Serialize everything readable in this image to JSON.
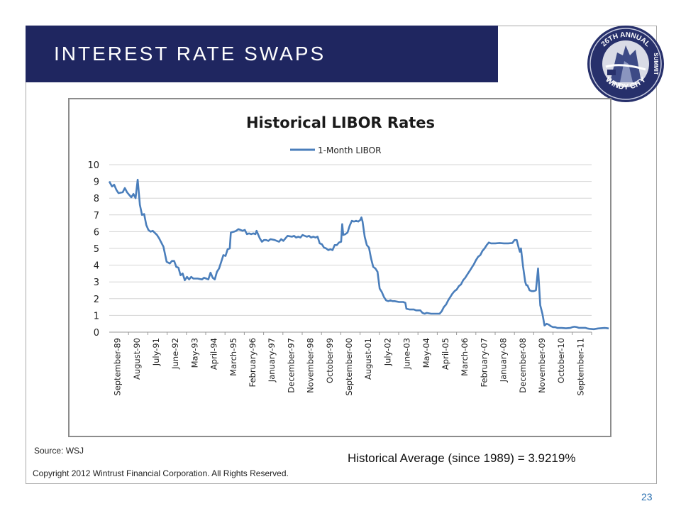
{
  "slide": {
    "title": "INTEREST RATE SWAPS",
    "source": "Source:  WSJ",
    "average": "Historical Average (since 1989) = 3.9219%",
    "copyright": "Copyright 2012 Wintrust Financial Corporation. All Rights Reserved.",
    "page_number": "23",
    "title_bar_color": "#1f2660"
  },
  "logo": {
    "top_text": "26TH ANNUAL",
    "side_text": "SUMMIT",
    "bottom_text": "WINDY CITY",
    "icon": "windy-city-summit-seal"
  },
  "chart_data": {
    "type": "line",
    "title": "Historical LIBOR Rates",
    "legend_position": "top-center",
    "grid": "horizontal",
    "ylim": [
      0,
      10
    ],
    "yticks": [
      0,
      1,
      2,
      3,
      4,
      5,
      6,
      7,
      8,
      9,
      10
    ],
    "xlim": [
      1989.67,
      2012.2
    ],
    "xtick_labels": [
      "September-89",
      "August-90",
      "July-91",
      "June-92",
      "May-93",
      "April-94",
      "March-95",
      "February-96",
      "January-97",
      "December-97",
      "November-98",
      "October-99",
      "September-00",
      "August-01",
      "July-02",
      "June-03",
      "May-04",
      "April-05",
      "March-06",
      "February-07",
      "January-08",
      "December-08",
      "November-09",
      "October-10",
      "September-11"
    ],
    "series": [
      {
        "name": "1-Month LIBOR",
        "color": "#4a7ebb",
        "points": [
          [
            1989.67,
            9.0
          ],
          [
            1989.8,
            8.7
          ],
          [
            1989.9,
            8.8
          ],
          [
            1990.0,
            8.5
          ],
          [
            1990.1,
            8.3
          ],
          [
            1990.3,
            8.35
          ],
          [
            1990.4,
            8.6
          ],
          [
            1990.5,
            8.35
          ],
          [
            1990.6,
            8.2
          ],
          [
            1990.7,
            8.05
          ],
          [
            1990.8,
            8.25
          ],
          [
            1990.9,
            8.0
          ],
          [
            1991.0,
            9.1
          ],
          [
            1991.1,
            7.6
          ],
          [
            1991.2,
            7.0
          ],
          [
            1991.3,
            7.05
          ],
          [
            1991.4,
            6.4
          ],
          [
            1991.5,
            6.1
          ],
          [
            1991.6,
            6.0
          ],
          [
            1991.7,
            6.05
          ],
          [
            1991.9,
            5.8
          ],
          [
            1992.0,
            5.6
          ],
          [
            1992.2,
            5.1
          ],
          [
            1992.3,
            4.5
          ],
          [
            1992.35,
            4.2
          ],
          [
            1992.5,
            4.1
          ],
          [
            1992.6,
            4.25
          ],
          [
            1992.7,
            4.25
          ],
          [
            1992.8,
            3.9
          ],
          [
            1992.9,
            3.85
          ],
          [
            1993.0,
            3.4
          ],
          [
            1993.1,
            3.5
          ],
          [
            1993.2,
            3.1
          ],
          [
            1993.3,
            3.3
          ],
          [
            1993.4,
            3.15
          ],
          [
            1993.5,
            3.3
          ],
          [
            1993.6,
            3.2
          ],
          [
            1993.8,
            3.2
          ],
          [
            1994.0,
            3.15
          ],
          [
            1994.1,
            3.25
          ],
          [
            1994.2,
            3.2
          ],
          [
            1994.3,
            3.15
          ],
          [
            1994.4,
            3.55
          ],
          [
            1994.5,
            3.25
          ],
          [
            1994.6,
            3.15
          ],
          [
            1994.7,
            3.6
          ],
          [
            1994.8,
            3.8
          ],
          [
            1994.9,
            4.2
          ],
          [
            1995.0,
            4.6
          ],
          [
            1995.1,
            4.55
          ],
          [
            1995.2,
            4.95
          ],
          [
            1995.3,
            5.0
          ],
          [
            1995.35,
            5.95
          ],
          [
            1995.5,
            6.0
          ],
          [
            1995.6,
            6.05
          ],
          [
            1995.7,
            6.15
          ],
          [
            1995.8,
            6.1
          ],
          [
            1995.9,
            6.05
          ],
          [
            1996.0,
            6.1
          ],
          [
            1996.1,
            5.85
          ],
          [
            1996.2,
            5.9
          ],
          [
            1996.3,
            5.85
          ],
          [
            1996.4,
            5.9
          ],
          [
            1996.5,
            5.85
          ],
          [
            1996.55,
            6.05
          ],
          [
            1996.7,
            5.6
          ],
          [
            1996.8,
            5.4
          ],
          [
            1996.9,
            5.5
          ],
          [
            1997.0,
            5.5
          ],
          [
            1997.1,
            5.45
          ],
          [
            1997.2,
            5.55
          ],
          [
            1997.4,
            5.5
          ],
          [
            1997.5,
            5.45
          ],
          [
            1997.6,
            5.4
          ],
          [
            1997.7,
            5.55
          ],
          [
            1997.8,
            5.45
          ],
          [
            1997.9,
            5.6
          ],
          [
            1998.0,
            5.75
          ],
          [
            1998.2,
            5.7
          ],
          [
            1998.3,
            5.75
          ],
          [
            1998.4,
            5.65
          ],
          [
            1998.5,
            5.7
          ],
          [
            1998.6,
            5.65
          ],
          [
            1998.7,
            5.8
          ],
          [
            1998.8,
            5.75
          ],
          [
            1998.9,
            5.7
          ],
          [
            1999.0,
            5.75
          ],
          [
            1999.1,
            5.65
          ],
          [
            1999.2,
            5.7
          ],
          [
            1999.3,
            5.65
          ],
          [
            1999.4,
            5.7
          ],
          [
            1999.5,
            5.3
          ],
          [
            1999.6,
            5.25
          ],
          [
            1999.7,
            5.05
          ],
          [
            1999.8,
            5.0
          ],
          [
            1999.9,
            4.9
          ],
          [
            2000.0,
            4.95
          ],
          [
            2000.1,
            4.9
          ],
          [
            2000.2,
            5.2
          ],
          [
            2000.3,
            5.2
          ],
          [
            2000.4,
            5.35
          ],
          [
            2000.5,
            5.4
          ],
          [
            2000.55,
            6.45
          ],
          [
            2000.6,
            5.8
          ],
          [
            2000.7,
            5.85
          ],
          [
            2000.8,
            5.95
          ],
          [
            2000.9,
            6.35
          ],
          [
            2001.0,
            6.65
          ],
          [
            2001.1,
            6.6
          ],
          [
            2001.2,
            6.65
          ],
          [
            2001.3,
            6.6
          ],
          [
            2001.4,
            6.7
          ],
          [
            2001.45,
            6.85
          ],
          [
            2001.5,
            6.6
          ],
          [
            2001.6,
            5.7
          ],
          [
            2001.7,
            5.2
          ],
          [
            2001.8,
            5.05
          ],
          [
            2001.9,
            4.4
          ],
          [
            2002.0,
            3.9
          ],
          [
            2002.1,
            3.8
          ],
          [
            2002.2,
            3.6
          ],
          [
            2002.3,
            2.6
          ],
          [
            2002.4,
            2.4
          ],
          [
            2002.5,
            2.1
          ],
          [
            2002.6,
            1.9
          ],
          [
            2002.7,
            1.85
          ],
          [
            2002.8,
            1.9
          ],
          [
            2002.9,
            1.85
          ],
          [
            2003.0,
            1.85
          ],
          [
            2003.2,
            1.8
          ],
          [
            2003.4,
            1.8
          ],
          [
            2003.5,
            1.75
          ],
          [
            2003.55,
            1.4
          ],
          [
            2003.7,
            1.35
          ],
          [
            2003.9,
            1.35
          ],
          [
            2004.0,
            1.3
          ],
          [
            2004.2,
            1.3
          ],
          [
            2004.3,
            1.15
          ],
          [
            2004.4,
            1.1
          ],
          [
            2004.5,
            1.15
          ],
          [
            2004.7,
            1.1
          ],
          [
            2004.9,
            1.1
          ],
          [
            2005.1,
            1.1
          ],
          [
            2005.2,
            1.25
          ],
          [
            2005.3,
            1.5
          ],
          [
            2005.4,
            1.65
          ],
          [
            2005.5,
            1.9
          ],
          [
            2005.6,
            2.1
          ],
          [
            2005.7,
            2.3
          ],
          [
            2005.8,
            2.45
          ],
          [
            2005.9,
            2.55
          ],
          [
            2006.0,
            2.75
          ],
          [
            2006.1,
            2.85
          ],
          [
            2006.2,
            3.1
          ],
          [
            2006.3,
            3.25
          ],
          [
            2006.4,
            3.45
          ],
          [
            2006.5,
            3.65
          ],
          [
            2006.6,
            3.85
          ],
          [
            2006.7,
            4.05
          ],
          [
            2006.8,
            4.3
          ],
          [
            2006.9,
            4.5
          ],
          [
            2007.0,
            4.6
          ],
          [
            2007.1,
            4.85
          ],
          [
            2007.2,
            5.0
          ],
          [
            2007.3,
            5.2
          ],
          [
            2007.4,
            5.35
          ],
          [
            2007.5,
            5.3
          ],
          [
            2007.6,
            5.3
          ],
          [
            2007.7,
            5.3
          ],
          [
            2007.9,
            5.32
          ],
          [
            2008.1,
            5.3
          ],
          [
            2008.3,
            5.3
          ],
          [
            2008.5,
            5.32
          ],
          [
            2008.6,
            5.5
          ],
          [
            2008.7,
            5.5
          ],
          [
            2008.8,
            5.0
          ],
          [
            2008.85,
            4.8
          ],
          [
            2008.9,
            5.0
          ],
          [
            2009.0,
            3.9
          ],
          [
            2009.1,
            3.0
          ],
          [
            2009.15,
            2.8
          ],
          [
            2009.2,
            2.8
          ],
          [
            2009.3,
            2.5
          ],
          [
            2009.4,
            2.45
          ],
          [
            2009.5,
            2.45
          ],
          [
            2009.6,
            2.5
          ],
          [
            2009.7,
            3.8
          ],
          [
            2009.8,
            1.6
          ],
          [
            2009.9,
            1.1
          ],
          [
            2010.0,
            0.4
          ],
          [
            2010.1,
            0.5
          ],
          [
            2010.2,
            0.45
          ],
          [
            2010.3,
            0.35
          ],
          [
            2010.4,
            0.3
          ],
          [
            2010.5,
            0.3
          ],
          [
            2010.6,
            0.25
          ],
          [
            2010.8,
            0.25
          ],
          [
            2011.0,
            0.23
          ],
          [
            2011.2,
            0.25
          ],
          [
            2011.3,
            0.3
          ],
          [
            2011.4,
            0.32
          ],
          [
            2011.5,
            0.3
          ],
          [
            2011.6,
            0.26
          ],
          [
            2011.8,
            0.26
          ],
          [
            2011.9,
            0.26
          ],
          [
            2012.0,
            0.22
          ],
          [
            2012.1,
            0.2
          ],
          [
            2012.3,
            0.18
          ],
          [
            2012.4,
            0.2
          ],
          [
            2012.5,
            0.22
          ],
          [
            2012.7,
            0.24
          ],
          [
            2012.8,
            0.25
          ],
          [
            2012.9,
            0.24
          ],
          [
            2013.0,
            0.22
          ]
        ]
      }
    ]
  }
}
